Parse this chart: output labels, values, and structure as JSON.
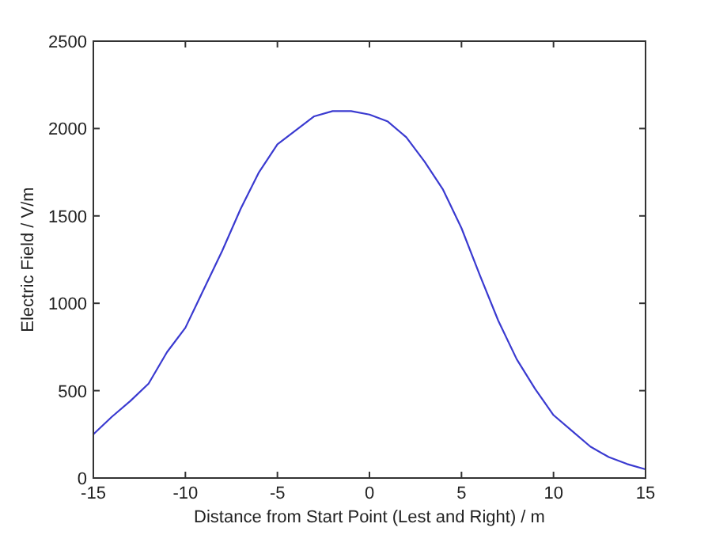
{
  "chart_data": {
    "type": "line",
    "xlabel": "Distance from Start Point (Lest and Right) / m",
    "ylabel": "Electric Field / V/m",
    "x": [
      -15,
      -14,
      -13,
      -12,
      -11,
      -10,
      -9,
      -8,
      -7,
      -6,
      -5,
      -4,
      -3,
      -2,
      -1,
      0,
      1,
      2,
      3,
      4,
      5,
      6,
      7,
      8,
      9,
      10,
      11,
      12,
      13,
      14,
      15
    ],
    "series": [
      {
        "color": "#3a3ad0",
        "values": [
          250,
          350,
          440,
          540,
          720,
          860,
          1080,
          1300,
          1540,
          1750,
          1910,
          1990,
          2070,
          2100,
          2100,
          2080,
          2040,
          1950,
          1810,
          1650,
          1430,
          1160,
          900,
          680,
          510,
          360,
          270,
          180,
          120,
          80,
          50
        ]
      }
    ],
    "xlim": [
      -15,
      15
    ],
    "xticks": [
      -15,
      -10,
      -5,
      0,
      5,
      10,
      15
    ],
    "ylim": [
      0,
      2500
    ],
    "yticks": [
      0,
      500,
      1000,
      1500,
      2000,
      2500
    ],
    "grid": false,
    "line_style": "solid",
    "marker": "none"
  }
}
